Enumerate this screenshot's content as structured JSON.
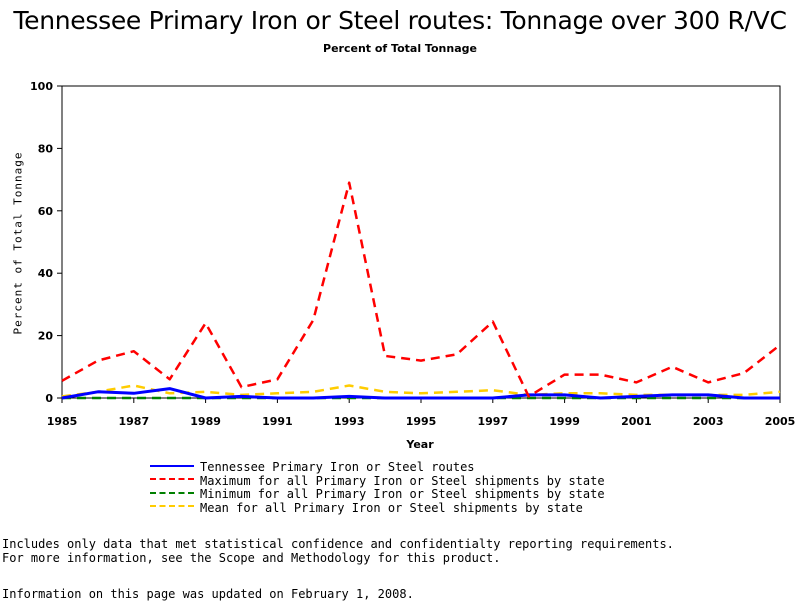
{
  "chart_data": {
    "type": "line",
    "title": "Tennessee Primary Iron or Steel routes: Tonnage over 300 R/VC",
    "subtitle": "Percent of Total Tonnage",
    "xlabel": "Year",
    "ylabel": "Percent of Total Tonnage",
    "xlim": [
      1985,
      2005
    ],
    "ylim": [
      0,
      100
    ],
    "x_ticks": [
      "1985",
      "1987",
      "1989",
      "1991",
      "1993",
      "1995",
      "1997",
      "1999",
      "2001",
      "2003",
      "2005"
    ],
    "y_ticks": [
      "0",
      "20",
      "40",
      "60",
      "80",
      "100"
    ],
    "grid": false,
    "legend_position": "bottom",
    "x": [
      1985,
      1986,
      1987,
      1988,
      1989,
      1990,
      1991,
      1992,
      1993,
      1994,
      1995,
      1996,
      1997,
      1998,
      1999,
      2000,
      2001,
      2002,
      2003,
      2004,
      2005
    ],
    "series": [
      {
        "name": "Tennessee Primary Iron or Steel routes",
        "color": "#0000ff",
        "dash": "solid",
        "values": [
          0,
          2,
          1.5,
          3,
          0,
          0.5,
          0,
          0,
          0.5,
          0,
          0,
          0,
          0,
          1,
          1,
          0,
          0.5,
          1,
          1,
          0,
          0
        ]
      },
      {
        "name": "Maximum for all Primary Iron or Steel shipments by state",
        "color": "#ff0000",
        "dash": "dashed",
        "values": [
          5.5,
          12,
          15,
          6,
          24,
          3.5,
          6,
          25,
          69,
          13.5,
          12,
          14,
          24.5,
          0.5,
          7.5,
          7.5,
          5,
          10,
          5,
          8,
          17
        ]
      },
      {
        "name": "Minimum for all Primary Iron or Steel shipments by state",
        "color": "#008000",
        "dash": "dashed",
        "values": [
          0,
          0,
          0,
          0,
          0,
          0,
          0,
          0,
          0,
          0,
          0,
          0,
          0,
          0,
          0,
          0,
          0,
          0,
          0,
          0,
          0
        ]
      },
      {
        "name": "Mean for all Primary Iron or Steel shipments by state",
        "color": "#ffcc00",
        "dash": "dashed",
        "values": [
          0.5,
          2,
          4,
          1.5,
          2,
          1,
          1.5,
          2,
          4,
          2,
          1.5,
          2,
          2.5,
          1,
          1.5,
          1.5,
          1,
          1,
          1,
          1,
          2
        ]
      }
    ]
  },
  "notes": [
    "Includes only data that met statistical confidence and confidentialty reporting requirements.",
    "For more information, see the Scope and Methodology for this product."
  ],
  "updated": "Information on this page was updated on February 1, 2008."
}
